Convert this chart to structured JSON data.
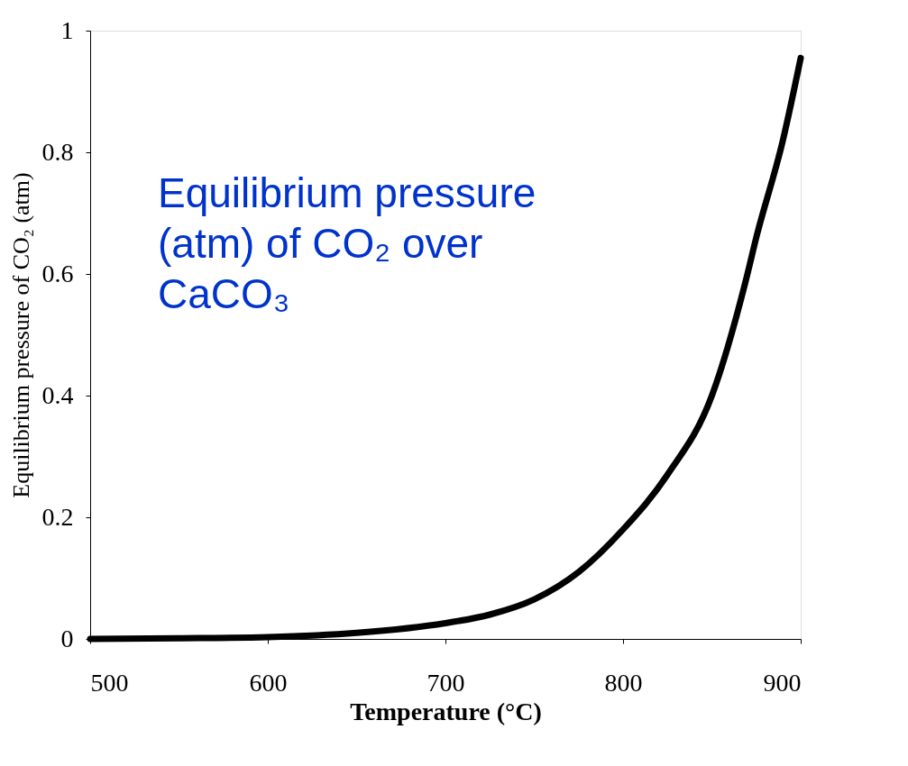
{
  "chart_data": {
    "type": "line",
    "xlabel": "Temperature (°C)",
    "ylabel": "Equilibrium pressure of CO₂ (atm)",
    "annotations": [
      "Equilibrium pressure (atm) of CO₂ over CaCO₃"
    ],
    "x": [
      500,
      550,
      600,
      650,
      700,
      725,
      750,
      775,
      800,
      825,
      850,
      869,
      875,
      890,
      900
    ],
    "series": [
      {
        "color": "#000000",
        "values": [
          0,
          0.001,
          0.003,
          0.01,
          0.026,
          0.04,
          0.065,
          0.11,
          0.18,
          0.27,
          0.4,
          0.588,
          0.66,
          0.82,
          0.955
        ]
      }
    ],
    "xlim": [
      500,
      900
    ],
    "ylim": [
      0,
      1
    ],
    "xticks": [
      500,
      600,
      700,
      800,
      900
    ],
    "yticks": [
      0,
      0.2,
      0.4,
      0.6,
      0.8,
      1
    ],
    "grid": false,
    "legend": false,
    "marker": "none",
    "line_style": "solid"
  }
}
